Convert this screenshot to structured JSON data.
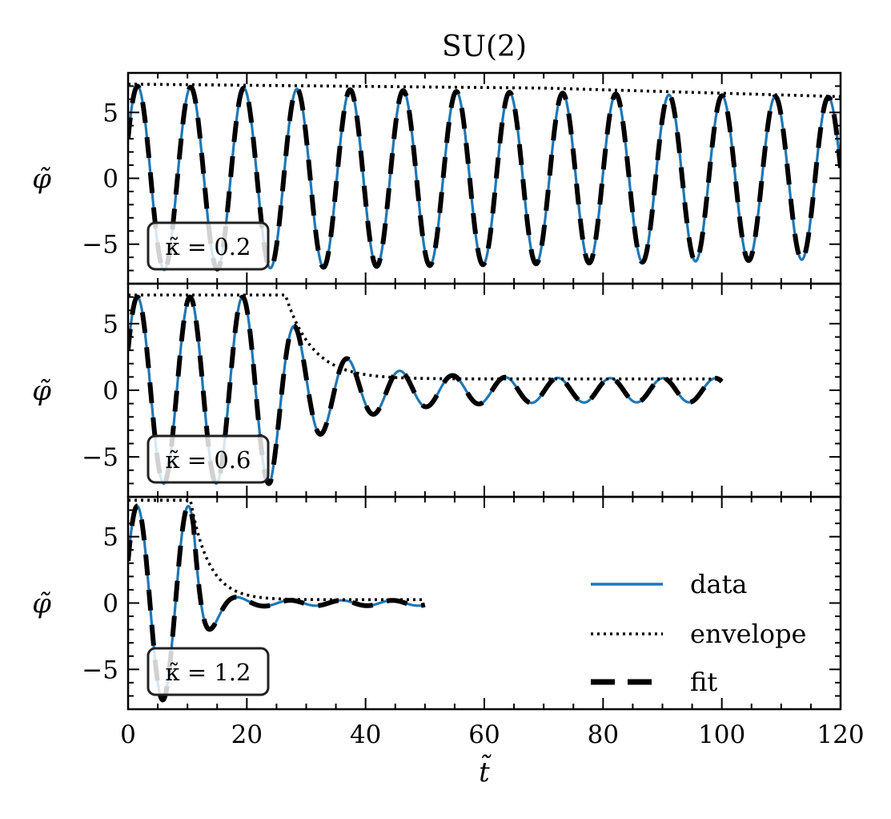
{
  "chart_data": {
    "type": "line",
    "title": "SU(2)",
    "xlabel": "t̃",
    "ylabel": "φ̃",
    "xlim": [
      0,
      120
    ],
    "ylim": [
      -8,
      8
    ],
    "x_ticks": [
      0,
      20,
      40,
      60,
      80,
      100,
      120
    ],
    "x_tick_labels": [
      "0",
      "20",
      "40",
      "60",
      "80",
      "100",
      "120"
    ],
    "y_ticks": [
      -5,
      0,
      5
    ],
    "y_tick_labels": [
      "−5",
      "0",
      "5"
    ],
    "legend": {
      "position": "bottom-right of bottom panel",
      "entries": [
        {
          "label": "data",
          "style": "solid",
          "color": "#1f77b4"
        },
        {
          "label": "envelope",
          "style": "dotted",
          "color": "#000000"
        },
        {
          "label": "fit",
          "style": "dashed",
          "color": "#000000"
        }
      ]
    },
    "panels": [
      {
        "name": "kappa-0.2",
        "kappa_label": "κ̃ = 0.2",
        "model": {
          "amplitude": 7.0,
          "period": 8.95,
          "phase_rad": 0.45,
          "t_end": 120,
          "decay_start": 0,
          "decay_rate": 0.0011,
          "asymptote": 0,
          "osc_floor": 0
        },
        "envelope": {
          "start": 7.15,
          "end": 6.2,
          "hold_until": 70,
          "t_end": 120
        },
        "fit_from": 0
      },
      {
        "name": "kappa-0.6",
        "kappa_label": "κ̃ = 0.6",
        "model": {
          "amplitude": 7.0,
          "period": 8.85,
          "phase_rad": 0.45,
          "t_end": 100,
          "decay_start": 24,
          "decay_rate": 0.11,
          "asymptote": 0,
          "osc_floor": 0.9
        },
        "envelope": {
          "plateau": 7.15,
          "plateau_until": 26.5,
          "asymptote": 0.85,
          "decay_rate": 0.22,
          "t_end": 100
        },
        "fit_from": 0
      },
      {
        "name": "kappa-1.2",
        "kappa_label": "κ̃ = 1.2",
        "model": {
          "amplitude": 7.3,
          "period": 8.6,
          "phase_rad": 0.45,
          "t_end": 50,
          "decay_start": 11,
          "decay_rate": 0.45,
          "asymptote": 0.0,
          "osc_floor": 0.2
        },
        "envelope": {
          "plateau": 7.75,
          "plateau_until": 10.5,
          "asymptote": 0.25,
          "decay_rate": 0.32,
          "t_end": 50
        },
        "fit_from": 0
      }
    ]
  }
}
